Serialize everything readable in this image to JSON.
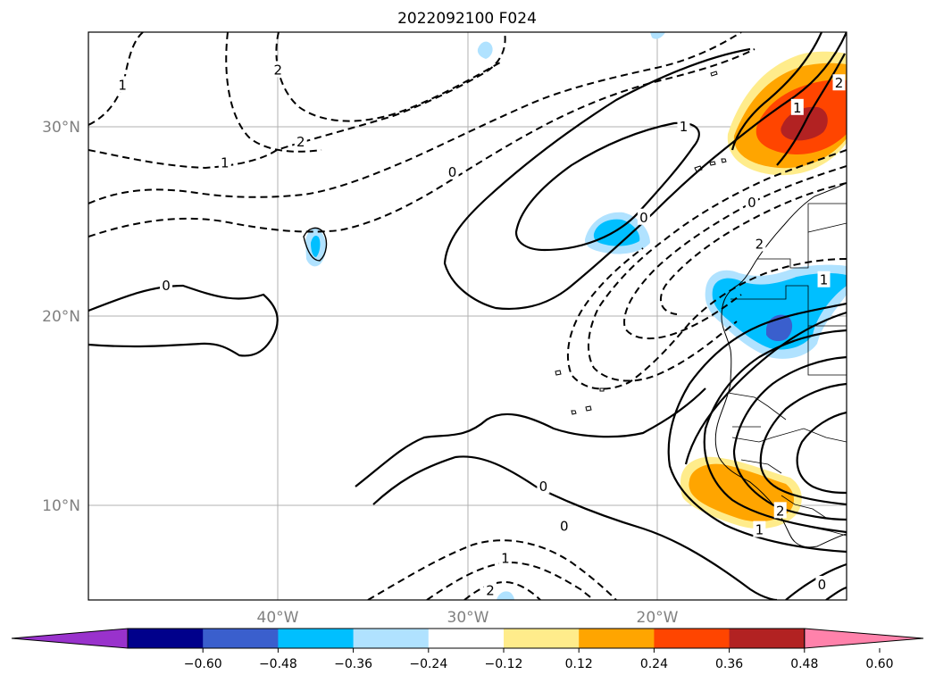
{
  "title": "2022092100 F024",
  "map": {
    "lon_range": [
      -50,
      -10
    ],
    "lat_range": [
      5,
      35
    ],
    "lat_ticks": [
      {
        "value": 30,
        "label": "30°N"
      },
      {
        "value": 20,
        "label": "20°N"
      },
      {
        "value": 10,
        "label": "10°N"
      }
    ],
    "lon_ticks": [
      {
        "value": -40,
        "label": "40°W"
      },
      {
        "value": -30,
        "label": "30°W"
      },
      {
        "value": -20,
        "label": "20°W"
      }
    ],
    "gridlines": true,
    "coastlines": true,
    "country_borders": true
  },
  "colorbar": {
    "extend": "both",
    "ticks": [
      "−0.60",
      "−0.48",
      "−0.36",
      "−0.24",
      "−0.12",
      "0.12",
      "0.24",
      "0.36",
      "0.48",
      "0.60"
    ],
    "colors": [
      "#9932cc",
      "#00008b",
      "#3a5fcd",
      "#00bfff",
      "#b0e2ff",
      "#ffffff",
      "#ffec8b",
      "#ffa500",
      "#ff4500",
      "#b22222",
      "#ff82ab"
    ]
  },
  "contour_labels": [
    {
      "text": "1",
      "lon": -48.2,
      "lat": 32.2
    },
    {
      "text": "2",
      "lon": -40.0,
      "lat": 33.0
    },
    {
      "text": "2",
      "lon": -38.8,
      "lat": 29.2
    },
    {
      "text": "1",
      "lon": -42.8,
      "lat": 28.1
    },
    {
      "text": "0",
      "lon": -30.8,
      "lat": 27.6
    },
    {
      "text": "1",
      "lon": -18.6,
      "lat": 30.0
    },
    {
      "text": "0",
      "lon": -20.7,
      "lat": 25.2
    },
    {
      "text": "0",
      "lon": -15.0,
      "lat": 26.0
    },
    {
      "text": "2",
      "lon": -14.6,
      "lat": 23.8
    },
    {
      "text": "1",
      "lon": -11.2,
      "lat": 21.9
    },
    {
      "text": "2",
      "lon": -10.4,
      "lat": 32.3
    },
    {
      "text": "1",
      "lon": -12.6,
      "lat": 31.0
    },
    {
      "text": "0",
      "lon": -45.9,
      "lat": 21.6
    },
    {
      "text": "0",
      "lon": -26.0,
      "lat": 11.0
    },
    {
      "text": "0",
      "lon": -24.9,
      "lat": 8.9
    },
    {
      "text": "1",
      "lon": -28.0,
      "lat": 7.2
    },
    {
      "text": "2",
      "lon": -28.8,
      "lat": 5.5
    },
    {
      "text": "2",
      "lon": -13.5,
      "lat": 9.7
    },
    {
      "text": "1",
      "lon": -14.6,
      "lat": 8.7
    },
    {
      "text": "0",
      "lon": -11.3,
      "lat": 5.8
    }
  ]
}
